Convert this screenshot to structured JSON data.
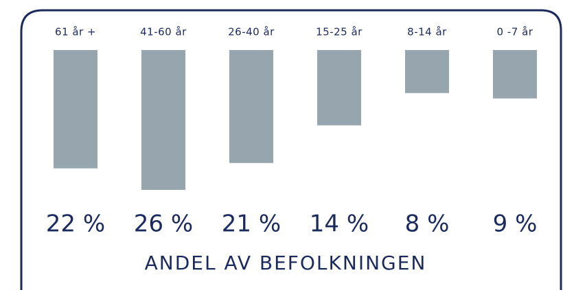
{
  "chart_data": {
    "type": "bar",
    "title": "ANDEL AV BEFOLKNINGEN",
    "categories": [
      "61 år +",
      "41-60 år",
      "26-40 år",
      "15-25 år",
      "8-14 år",
      "0 -7 år"
    ],
    "values": [
      22,
      26,
      21,
      14,
      8,
      9
    ],
    "value_labels": [
      "22 %",
      "26 %",
      "21 %",
      "14 %",
      "8 %",
      "9 %"
    ],
    "color": "#97a5ae"
  }
}
